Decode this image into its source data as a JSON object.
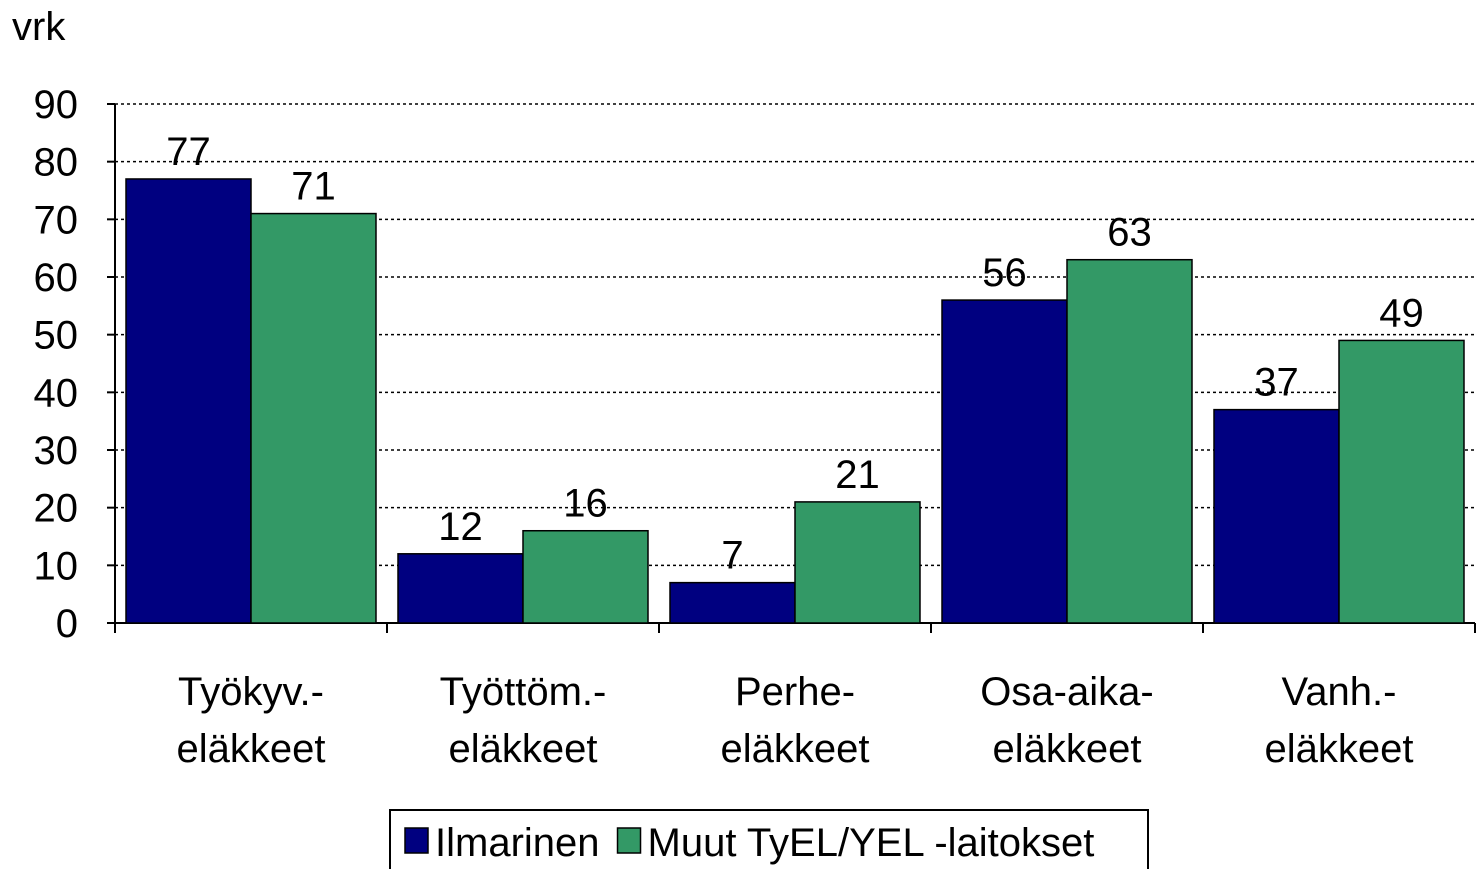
{
  "chart_data": {
    "type": "bar",
    "y_label": "vrk",
    "categories": [
      [
        "Työkyv.-",
        "eläkkeet"
      ],
      [
        "Työttöm.-",
        "eläkkeet"
      ],
      [
        "Perhe-",
        "eläkkeet"
      ],
      [
        "Osa-aika-",
        "eläkkeet"
      ],
      [
        "Vanh.-",
        "eläkkeet"
      ]
    ],
    "series": [
      {
        "name": "Ilmarinen",
        "color": "#000080",
        "values": [
          77,
          12,
          7,
          56,
          37
        ]
      },
      {
        "name": "Muut TyEL/YEL -laitokset",
        "color": "#339966",
        "values": [
          71,
          16,
          21,
          63,
          49
        ]
      }
    ],
    "ylim": [
      0,
      90
    ],
    "yticks": [
      0,
      10,
      20,
      30,
      40,
      50,
      60,
      70,
      80,
      90
    ],
    "grid": true,
    "legend": "bottom"
  }
}
